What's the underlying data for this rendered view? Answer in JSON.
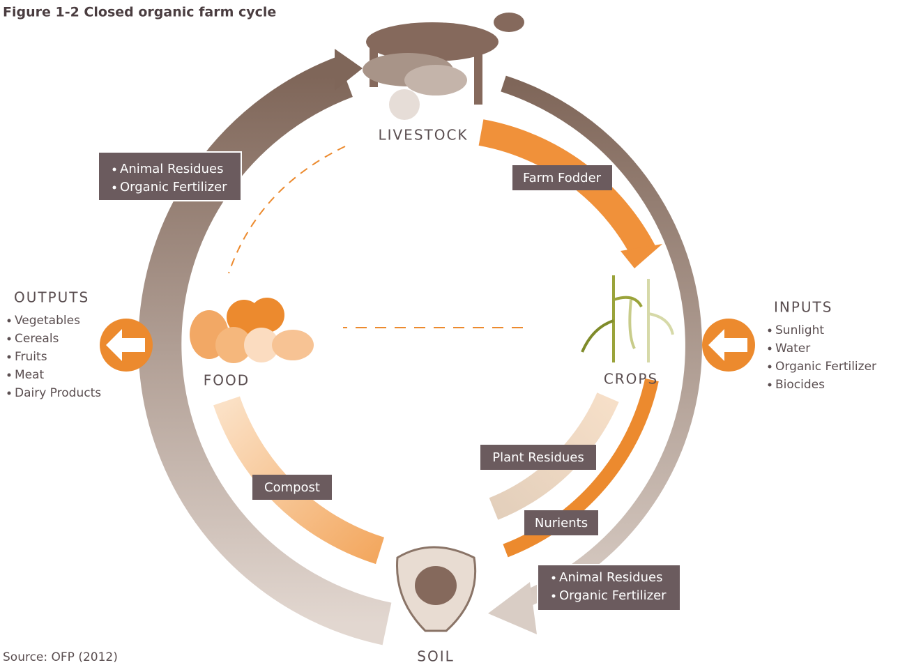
{
  "header": {
    "title": "Figure 1-2  Closed organic farm cycle"
  },
  "nodes": [
    {
      "label": "LIVESTOCK"
    },
    {
      "label": "FOOD"
    },
    {
      "label": "CROPS"
    },
    {
      "label": "SOIL"
    }
  ],
  "flows": [
    {
      "label": "Farm Fodder"
    },
    {
      "label": "Plant Residues"
    },
    {
      "label": "Nurients"
    },
    {
      "label": "Compost"
    }
  ],
  "boxes": [
    {
      "items": [
        "Animal Residues",
        "Organic Fertilizer"
      ]
    },
    {
      "items": [
        "Animal Residues",
        "Organic Fertilizer"
      ]
    }
  ],
  "outputs": {
    "title": "OUTPUTS",
    "items": [
      "Vegetables",
      "Cereals",
      "Fruits",
      "Meat",
      "Dairy Products"
    ]
  },
  "inputs": {
    "title": "INPUTS",
    "items": [
      "Sunlight",
      "Water",
      "Organic Fertilizer",
      "Biocides"
    ]
  },
  "source": "Source: OFP (2012)"
}
